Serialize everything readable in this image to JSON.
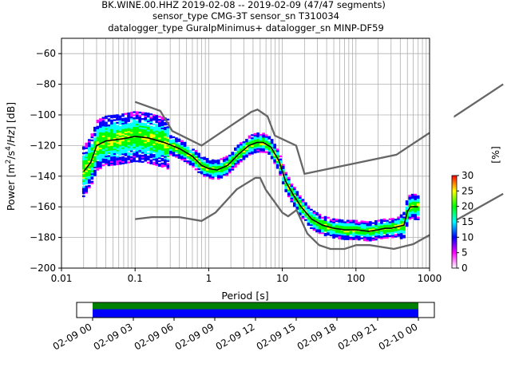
{
  "title_lines": [
    "BK.WINE.00.HHZ   2019-02-08 -- 2019-02-09  (47/47 segments)",
    "sensor_type CMG-3T sensor_sn T310034",
    "datalogger_type GuralpMinimus+ datalogger_sn MINP-DF59"
  ],
  "colors": {
    "nlnm_nhnm": "#666666",
    "mode_line": "#000000",
    "coverage_top": "#008000",
    "coverage_bottom": "#0000ff",
    "grid": "#b0b0b0"
  },
  "chart_data": {
    "type": "heatmap",
    "subtype": "probabilistic power spectral density",
    "xlabel": "Period [s]",
    "ylabel": "Power [m²/s⁴/Hz] [dB]",
    "xscale": "log",
    "xlim": [
      0.01,
      1000
    ],
    "ylim": [
      -200,
      -50
    ],
    "xticks": [
      {
        "v": 0.01,
        "label": "0.01"
      },
      {
        "v": 0.1,
        "label": "0.1"
      },
      {
        "v": 1,
        "label": "1"
      },
      {
        "v": 10,
        "label": "10"
      },
      {
        "v": 100,
        "label": "100"
      },
      {
        "v": 1000,
        "label": "1000"
      }
    ],
    "yticks": [
      -200,
      -180,
      -160,
      -140,
      -120,
      -100,
      -80,
      -60
    ],
    "grid": true,
    "colorbar": {
      "label": "[%]",
      "range": [
        0,
        30
      ],
      "ticks": [
        0,
        5,
        10,
        15,
        20,
        25,
        30
      ],
      "colormap": [
        "#ffffff",
        "#ff00ff",
        "#0000ff",
        "#00ffff",
        "#00ff00",
        "#ffff00",
        "#ff0000"
      ]
    },
    "series": [
      {
        "name": "",
        "role": "mode",
        "x": [
          0.02,
          0.025,
          0.03,
          0.04,
          0.06,
          0.08,
          0.1,
          0.15,
          0.25,
          0.4,
          0.6,
          0.8,
          1.0,
          1.3,
          1.8,
          2.5,
          3.5,
          4.5,
          5.5,
          7,
          9,
          11,
          14,
          18,
          25,
          35,
          50,
          70,
          100,
          150,
          200,
          250,
          300,
          450,
          500,
          550,
          700
        ],
        "y": [
          -137,
          -131,
          -120,
          -117,
          -116,
          -115,
          -114,
          -115,
          -118,
          -122,
          -127,
          -133,
          -135,
          -136,
          -133,
          -126,
          -120,
          -118,
          -118,
          -121,
          -130,
          -143,
          -152,
          -160,
          -168,
          -172,
          -174,
          -175,
          -175,
          -176,
          -175,
          -174,
          -174,
          -172,
          -163,
          -160,
          -160
        ]
      },
      {
        "name": "",
        "role": "high-noise-model",
        "x": [
          0.1,
          0.22,
          0.32,
          0.8,
          3.8,
          4.6,
          6.3,
          7.9,
          15.4,
          20,
          354.8,
          10000
        ],
        "y": [
          -91.5,
          -97.4,
          -110.5,
          -120,
          -98,
          -96.5,
          -101,
          -113.5,
          -120,
          -138.5,
          -126,
          -80
        ]
      },
      {
        "name": "",
        "role": "low-noise-model",
        "x": [
          0.1,
          0.17,
          0.4,
          0.8,
          1.24,
          2.4,
          4.3,
          5,
          6,
          10,
          12,
          15.6,
          21.9,
          31.6,
          45,
          70,
          101,
          154,
          328,
          600,
          10000
        ],
        "y": [
          -168,
          -166.7,
          -166.7,
          -169.2,
          -163.7,
          -148.6,
          -141.1,
          -141.1,
          -149,
          -163.8,
          -166.2,
          -162.1,
          -177.5,
          -185,
          -187.5,
          -187.5,
          -185,
          -185,
          -187.5,
          -184.4,
          -151.5
        ]
      }
    ],
    "time_axis": {
      "tick_labels": [
        "02-09 00",
        "02-09 03",
        "02-09 06",
        "02-09 09",
        "02-09 12",
        "02-09 15",
        "02-09 18",
        "02-09 21",
        "02-10 00"
      ],
      "coverage_fraction": [
        0,
        1
      ]
    }
  }
}
